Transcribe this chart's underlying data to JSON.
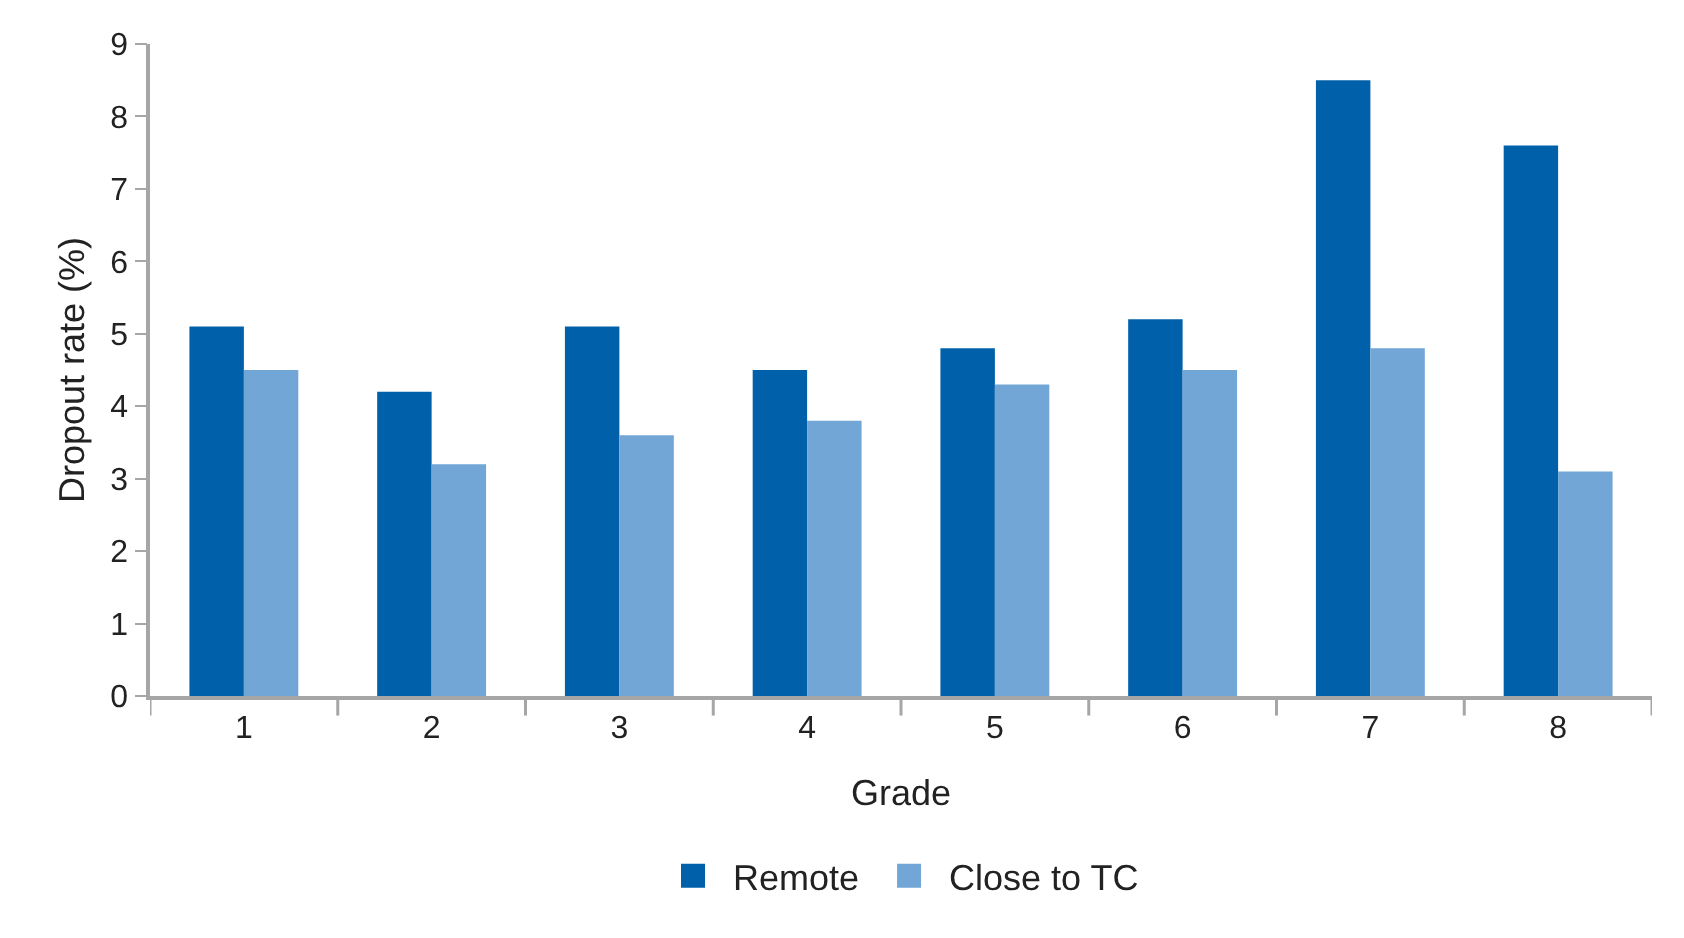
{
  "chart_data": {
    "type": "bar",
    "xlabel": "Grade",
    "ylabel": "Dropout rate (%)",
    "categories": [
      "1",
      "2",
      "3",
      "4",
      "5",
      "6",
      "7",
      "8"
    ],
    "series": [
      {
        "name": "Remote",
        "color": "#0060a9",
        "values": [
          5.1,
          4.2,
          5.1,
          4.5,
          4.8,
          5.2,
          8.5,
          7.6
        ]
      },
      {
        "name": "Close to TC",
        "color": "#71a6d7",
        "values": [
          4.5,
          3.2,
          3.6,
          3.8,
          4.3,
          4.5,
          4.8,
          3.1
        ]
      }
    ],
    "ylim": [
      0,
      9
    ],
    "yticks": [
      0,
      1,
      2,
      3,
      4,
      5,
      6,
      7,
      8,
      9
    ],
    "grid": false,
    "legend": "bottom"
  }
}
